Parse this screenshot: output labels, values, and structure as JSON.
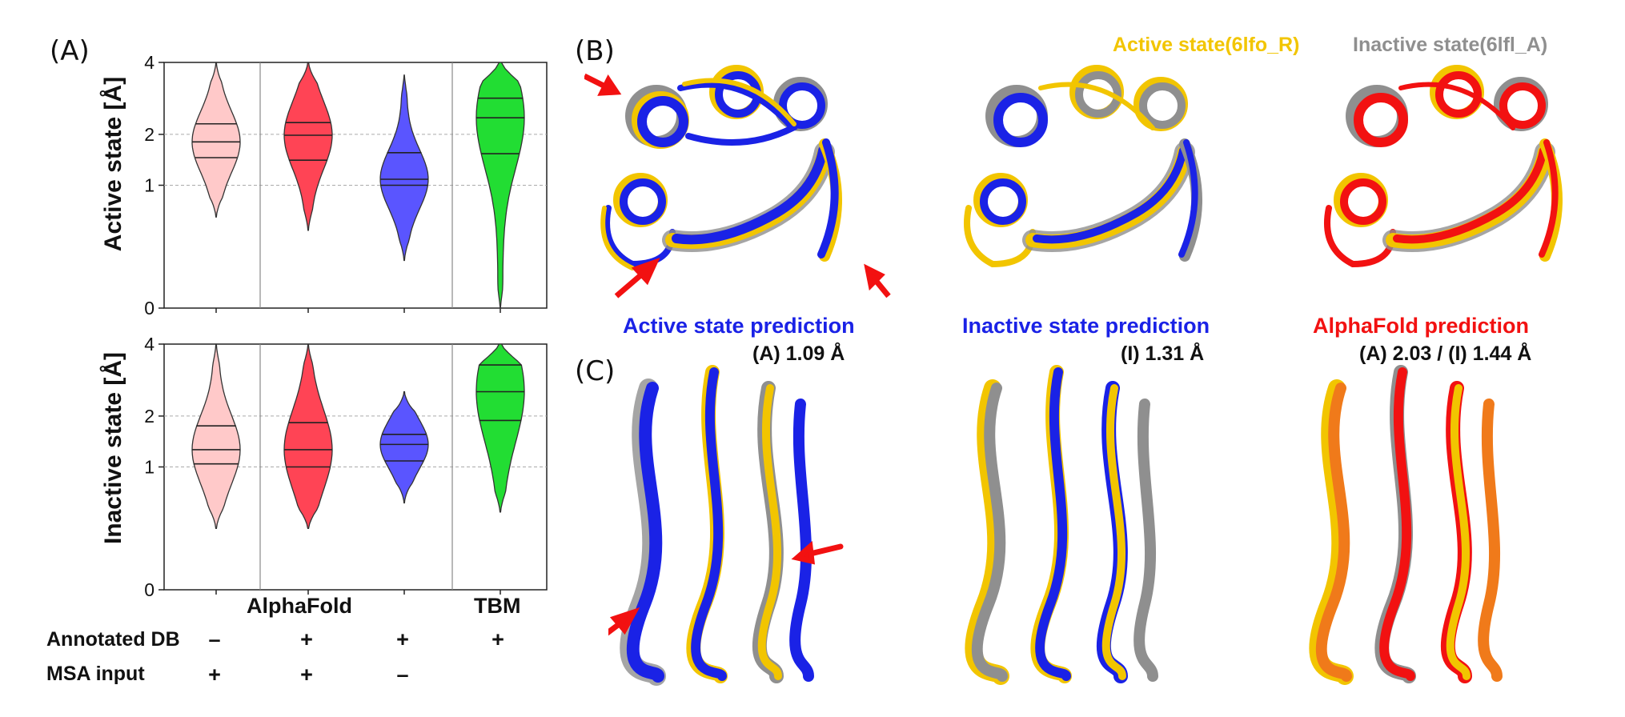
{
  "panels": {
    "a": "(A)",
    "b": "(B)",
    "c": "(C)"
  },
  "chart_data": [
    {
      "type": "violin",
      "ylabel": "Active state [Å]",
      "yscale": "sqrt",
      "ylim": [
        0,
        4
      ],
      "yticks": [
        "0",
        "1",
        "2",
        "4"
      ],
      "grid": "dashed at 1 and 2",
      "colors": [
        "#ffc9c9",
        "#ff4455",
        "#5a55ff",
        "#22dd33"
      ],
      "violins": [
        {
          "min": 0.55,
          "max": 4.0,
          "q1": 1.5,
          "median": 1.83,
          "q3": 2.25
        },
        {
          "min": 0.4,
          "max": 4.0,
          "q1": 1.45,
          "median": 1.98,
          "q3": 2.28
        },
        {
          "min": 0.15,
          "max": 3.6,
          "q1": 1.0,
          "median": 1.1,
          "q3": 1.6
        },
        {
          "min": 0.0,
          "max": 4.0,
          "q1": 1.58,
          "median": 2.4,
          "q3": 2.92
        }
      ]
    },
    {
      "type": "violin",
      "ylabel": "Inactive state [Å]",
      "yscale": "sqrt",
      "ylim": [
        0,
        4
      ],
      "yticks": [
        "0",
        "1",
        "2",
        "4"
      ],
      "grid": "dashed at 1 and 2",
      "colors": [
        "#ffc9c9",
        "#ff4455",
        "#5a55ff",
        "#22dd33"
      ],
      "violins": [
        {
          "min": 0.25,
          "max": 4.0,
          "q1": 1.05,
          "median": 1.3,
          "q3": 1.78
        },
        {
          "min": 0.25,
          "max": 4.0,
          "q1": 1.0,
          "median": 1.3,
          "q3": 1.85
        },
        {
          "min": 0.5,
          "max": 2.6,
          "q1": 1.1,
          "median": 1.4,
          "q3": 1.6
        },
        {
          "min": 0.4,
          "max": 4.0,
          "q1": 1.9,
          "median": 2.6,
          "q3": 3.35
        }
      ]
    }
  ],
  "groups": {
    "alphafold": "AlphaFold",
    "tbm": "TBM"
  },
  "rows": {
    "annotated": {
      "label": "Annotated DB",
      "values": [
        "–",
        "+",
        "+",
        "+"
      ]
    },
    "msa": {
      "label": "MSA input",
      "values": [
        "+",
        "+",
        "–",
        ""
      ]
    }
  },
  "legend": {
    "active": "Active state(6lfo_R)",
    "inactive": "Inactive state(6lfl_A)"
  },
  "predictions": [
    {
      "caption": "Active state prediction",
      "value": "(A) 1.09 Å",
      "color": "#1a22e6"
    },
    {
      "caption": "Inactive state prediction",
      "value": "(I) 1.31 Å",
      "color": "#1a22e6"
    },
    {
      "caption": "AlphaFold prediction",
      "value": "(A) 2.03 / (I) 1.44 Å",
      "color": "#f21111"
    }
  ],
  "colors": {
    "active": "#f2c500",
    "inactive": "#8f8f8f",
    "blue": "#1a22e6",
    "red": "#f21111"
  }
}
